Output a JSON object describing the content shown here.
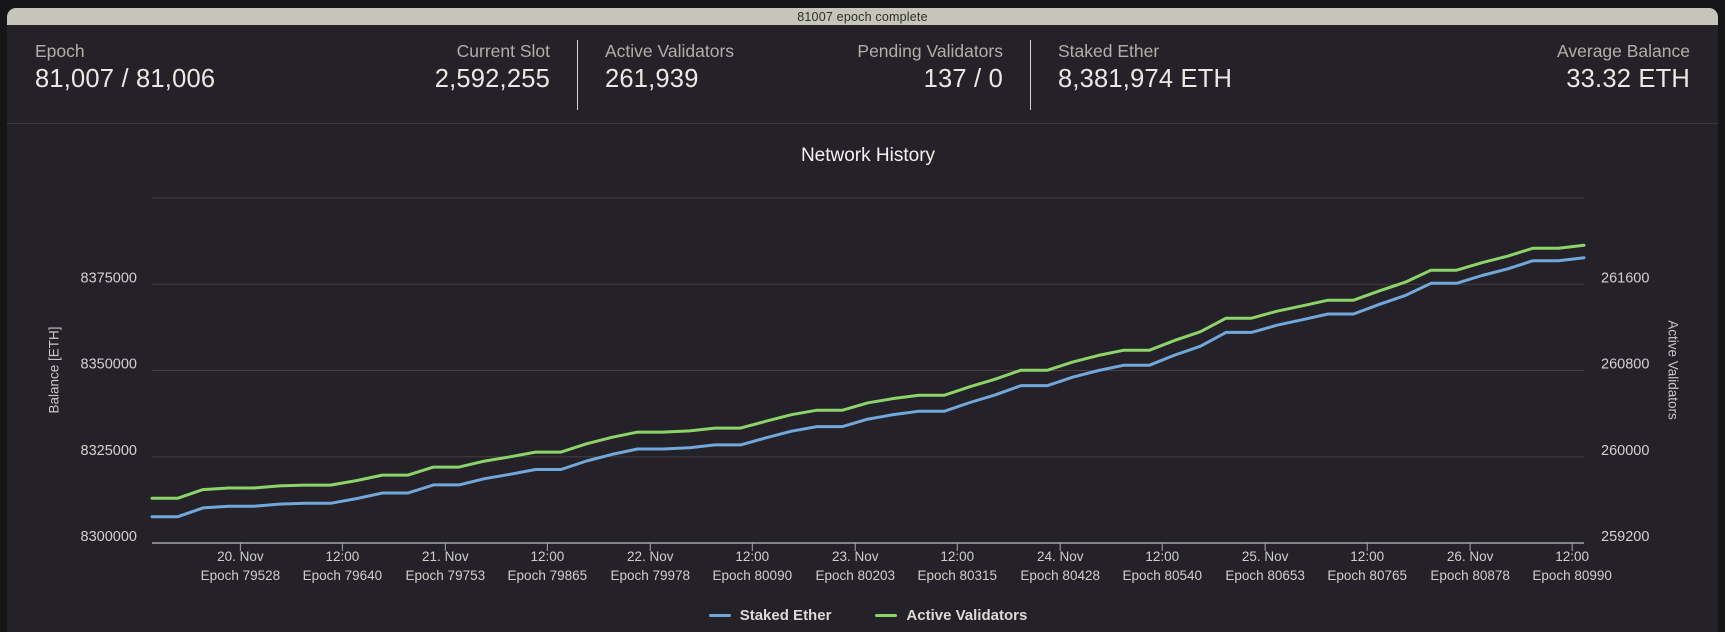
{
  "progress_bar": {
    "label": "81007 epoch complete"
  },
  "colors": {
    "progress_bar": "#c6c5bb",
    "staked_ether_line": "#72a7db",
    "active_validators_line": "#8cd46a",
    "gridline": "#473e40",
    "axis_line": "#a5a5ad"
  },
  "stats": {
    "groups": [
      {
        "left": {
          "label": "Epoch",
          "value": "81,007 / 81,006"
        },
        "right": {
          "label": "Current Slot",
          "value": "2,592,255"
        }
      },
      {
        "left": {
          "label": "Active Validators",
          "value": "261,939"
        },
        "right": {
          "label": "Pending Validators",
          "value": "137 / 0"
        }
      },
      {
        "left": {
          "label": "Staked Ether",
          "value": "8,381,974 ETH"
        },
        "right": {
          "label": "Average Balance",
          "value": "33.32 ETH"
        }
      }
    ]
  },
  "chart_data": {
    "type": "line",
    "title": "Network History",
    "legend_position": "bottom",
    "grid": true,
    "x_axis": {
      "epoch_range": [
        79431,
        81003
      ],
      "ticks": [
        {
          "epoch": 79528,
          "top": "20. Nov",
          "bottom": "Epoch 79528"
        },
        {
          "epoch": 79640,
          "top": "12:00",
          "bottom": "Epoch 79640"
        },
        {
          "epoch": 79753,
          "top": "21. Nov",
          "bottom": "Epoch 79753"
        },
        {
          "epoch": 79865,
          "top": "12:00",
          "bottom": "Epoch 79865"
        },
        {
          "epoch": 79978,
          "top": "22. Nov",
          "bottom": "Epoch 79978"
        },
        {
          "epoch": 80090,
          "top": "12:00",
          "bottom": "Epoch 80090"
        },
        {
          "epoch": 80203,
          "top": "23. Nov",
          "bottom": "Epoch 80203"
        },
        {
          "epoch": 80315,
          "top": "12:00",
          "bottom": "Epoch 80315"
        },
        {
          "epoch": 80428,
          "top": "24. Nov",
          "bottom": "Epoch 80428"
        },
        {
          "epoch": 80540,
          "top": "12:00",
          "bottom": "Epoch 80540"
        },
        {
          "epoch": 80653,
          "top": "25. Nov",
          "bottom": "Epoch 80653"
        },
        {
          "epoch": 80765,
          "top": "12:00",
          "bottom": "Epoch 80765"
        },
        {
          "epoch": 80878,
          "top": "26. Nov",
          "bottom": "Epoch 80878"
        },
        {
          "epoch": 80990,
          "top": "12:00",
          "bottom": "Epoch 80990"
        }
      ]
    },
    "left_axis": {
      "title": "Balance [ETH]",
      "min": 8300000,
      "tick_interval": 25000,
      "tick_labels": [
        "8375000",
        "8350000",
        "8325000",
        "8300000"
      ]
    },
    "right_axis": {
      "title": "Active Validators",
      "min": 259200,
      "tick_interval": 800,
      "tick_labels": [
        "261600",
        "260800",
        "260000",
        "259200"
      ]
    },
    "x_epochs": [
      79431,
      79459,
      79487,
      79515,
      79543,
      79571,
      79599,
      79627,
      79656,
      79684,
      79712,
      79740,
      79768,
      79796,
      79824,
      79852,
      79880,
      79908,
      79936,
      79964,
      79992,
      80021,
      80049,
      80077,
      80105,
      80133,
      80161,
      80189,
      80217,
      80245,
      80273,
      80301,
      80329,
      80357,
      80385,
      80414,
      80442,
      80470,
      80498,
      80526,
      80554,
      80582,
      80610,
      80638,
      80666,
      80694,
      80722,
      80750,
      80779,
      80807,
      80835,
      80863,
      80891,
      80919,
      80947,
      80975,
      81003
    ],
    "series": [
      {
        "name": "Staked Ether",
        "axis": "left",
        "color": "#72a7db",
        "values": [
          8307606,
          8307606,
          8310166,
          8310646,
          8310646,
          8311286,
          8311510,
          8311510,
          8312886,
          8314486,
          8314486,
          8316854,
          8316854,
          8318646,
          8319926,
          8321302,
          8321302,
          8323766,
          8325686,
          8327254,
          8327254,
          8327606,
          8328438,
          8328438,
          8330486,
          8332406,
          8333750,
          8333750,
          8335926,
          8337206,
          8338198,
          8338198,
          8340726,
          8342966,
          8345622,
          8345622,
          8348086,
          8350006,
          8351542,
          8351542,
          8354486,
          8357046,
          8361046,
          8361046,
          8363126,
          8364726,
          8366390,
          8366390,
          8369206,
          8371766,
          8375286,
          8375286,
          8377526,
          8379446,
          8381814,
          8381814,
          8382678
        ]
      },
      {
        "name": "Active Validators",
        "axis": "right",
        "color": "#8cd46a",
        "values": [
          259615,
          259615,
          259695,
          259710,
          259710,
          259730,
          259737,
          259737,
          259780,
          259830,
          259830,
          259904,
          259904,
          259960,
          260000,
          260043,
          260043,
          260120,
          260180,
          260229,
          260229,
          260240,
          260266,
          260266,
          260330,
          260390,
          260432,
          260432,
          260500,
          260540,
          260571,
          260571,
          260650,
          260720,
          260803,
          260803,
          260880,
          260940,
          260988,
          260988,
          261080,
          261160,
          261285,
          261285,
          261350,
          261400,
          261452,
          261452,
          261540,
          261620,
          261730,
          261730,
          261800,
          261860,
          261934,
          261934,
          261961
        ]
      }
    ]
  }
}
